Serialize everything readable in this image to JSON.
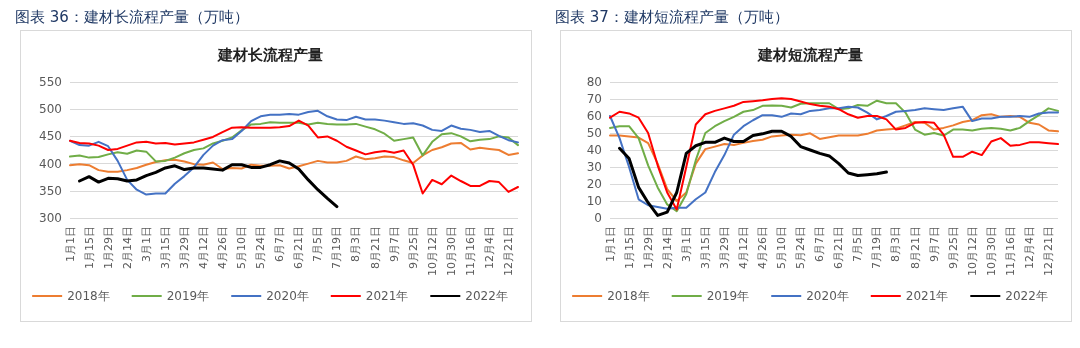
{
  "chart_data": [
    {
      "type": "line",
      "title": "图表 36：建材长流程产量（万吨）",
      "subtitle": "建材长流程产量",
      "categories": [
        "1月1日",
        null,
        "1月15日",
        null,
        "1月29日",
        null,
        "2月14日",
        null,
        "3月1日",
        null,
        "3月15日",
        null,
        "3月29日",
        null,
        "4月12日",
        null,
        "4月26日",
        null,
        "5月10日",
        null,
        "5月24日",
        null,
        "6月7日",
        null,
        "6月21日",
        null,
        "7月5日",
        null,
        "7月19日",
        null,
        "8月3日",
        null,
        "8月21日",
        null,
        "9月7日",
        null,
        "9月25日",
        null,
        "10月12日",
        null,
        "10月30日",
        null,
        "11月16日",
        null,
        "12月4日",
        null,
        "12月21日",
        null
      ],
      "series": [
        {
          "name": "2018年",
          "color": "#ed7d31",
          "values": [
            397,
            399,
            397,
            388,
            385,
            385,
            388,
            392,
            398,
            403,
            406,
            407,
            404,
            399,
            398,
            402,
            390,
            392,
            391,
            398,
            396,
            396,
            397,
            391,
            395,
            400,
            405,
            402,
            402,
            405,
            413,
            408,
            410,
            413,
            412,
            406,
            401,
            415,
            425,
            430,
            437,
            438,
            426,
            429,
            427,
            425,
            416,
            419
          ]
        },
        {
          "name": "2019年",
          "color": "#70ad47",
          "values": [
            413,
            415,
            411,
            412,
            417,
            421,
            418,
            424,
            422,
            404,
            405,
            411,
            419,
            425,
            428,
            437,
            442,
            448,
            461,
            472,
            473,
            476,
            475,
            475,
            475,
            472,
            475,
            473,
            472,
            472,
            473,
            468,
            463,
            455,
            442,
            445,
            448,
            415,
            440,
            454,
            456,
            450,
            441,
            444,
            445,
            450,
            448,
            434
          ]
        },
        {
          "name": "2020年",
          "color": "#4472c4",
          "values": [
            442,
            434,
            433,
            440,
            432,
            405,
            370,
            352,
            343,
            345,
            345,
            363,
            377,
            393,
            416,
            433,
            443,
            445,
            460,
            478,
            487,
            490,
            490,
            491,
            490,
            495,
            497,
            487,
            481,
            480,
            486,
            481,
            481,
            479,
            476,
            473,
            474,
            470,
            462,
            460,
            470,
            464,
            462,
            458,
            460,
            451,
            443,
            439
          ]
        },
        {
          "name": "2021年",
          "color": "#ff0000",
          "values": [
            442,
            438,
            437,
            433,
            425,
            427,
            433,
            439,
            440,
            437,
            438,
            435,
            437,
            439,
            444,
            449,
            458,
            466,
            467,
            466,
            466,
            466,
            467,
            469,
            479,
            470,
            448,
            450,
            442,
            431,
            424,
            417,
            421,
            423,
            420,
            424,
            398,
            345,
            370,
            362,
            378,
            368,
            359,
            359,
            368,
            366,
            348,
            357
          ]
        },
        {
          "name": "2022年",
          "color": "#000000",
          "values": [
            null,
            368,
            376,
            366,
            373,
            372,
            368,
            370,
            378,
            384,
            392,
            396,
            389,
            392,
            392,
            390,
            388,
            398,
            398,
            393,
            393,
            398,
            405,
            401,
            390,
            370,
            352,
            336,
            321,
            null,
            null,
            null,
            null,
            null,
            null,
            null,
            null,
            null,
            null,
            null,
            null,
            null,
            null,
            null,
            null,
            null,
            null,
            null
          ]
        }
      ],
      "ylim": [
        300,
        550
      ],
      "yticks": [
        300,
        350,
        400,
        450,
        500,
        550
      ],
      "grid": "y",
      "legend": "bottom",
      "marker": "none",
      "line_style": "solid"
    },
    {
      "type": "line",
      "title": "图表 37：建材短流程产量（万吨）",
      "subtitle": "建材短流程产量",
      "categories": [
        "1月1日",
        null,
        "1月15日",
        null,
        "1月29日",
        null,
        "2月14日",
        null,
        "3月1日",
        null,
        "3月15日",
        null,
        "3月29日",
        null,
        "4月12日",
        null,
        "4月26日",
        null,
        "5月10日",
        null,
        "5月24日",
        null,
        "6月7日",
        null,
        "6月21日",
        null,
        "7月5日",
        null,
        "7月19日",
        null,
        "8月3日",
        null,
        "8月21日",
        null,
        "9月7日",
        null,
        "9月25日",
        null,
        "10月12日",
        null,
        "10月30日",
        null,
        "11月16日",
        null,
        "12月4日",
        null,
        "12月21日",
        null
      ],
      "series": [
        {
          "name": "2018年",
          "color": "#ed7d31",
          "values": [
            48.5,
            48.5,
            48,
            47.3,
            44,
            32,
            17,
            10,
            15,
            32,
            40.5,
            42,
            43.5,
            43,
            44.2,
            45.3,
            46,
            48,
            48.5,
            49,
            48.7,
            49.8,
            46.5,
            47.5,
            48.5,
            48.5,
            48.5,
            49.5,
            51.5,
            52,
            52.5,
            54.5,
            56.5,
            56,
            52,
            53,
            54.5,
            56.5,
            57.5,
            60.5,
            61,
            59.5,
            60,
            59.5,
            56,
            55,
            51.5,
            51
          ]
        },
        {
          "name": "2019年",
          "color": "#70ad47",
          "values": [
            53,
            54,
            54,
            47,
            31,
            18,
            8,
            4,
            14,
            34,
            50,
            54,
            57,
            59.5,
            62.5,
            63.5,
            66,
            66.2,
            66,
            65,
            67.2,
            67.5,
            67.5,
            67.5,
            64,
            64.5,
            66.5,
            66,
            69,
            67.5,
            67.5,
            62,
            52,
            49,
            50,
            48.5,
            52,
            52,
            51.5,
            52.5,
            53,
            52.5,
            51.5,
            53,
            57,
            60.5,
            64.5,
            63
          ]
        },
        {
          "name": "2020年",
          "color": "#4472c4",
          "values": [
            60,
            47,
            30,
            11,
            7.5,
            6.5,
            5.5,
            6,
            6,
            11,
            15,
            27,
            37,
            49,
            54,
            57.5,
            60.5,
            60.5,
            59.5,
            61.5,
            61,
            63,
            63.5,
            64.5,
            64.5,
            65.5,
            65,
            62,
            58,
            60,
            62.5,
            63,
            63.5,
            64.5,
            64,
            63.5,
            64.5,
            65.5,
            57,
            58.5,
            58.5,
            59.5,
            59.5,
            60,
            59.5,
            61.5,
            62,
            62
          ]
        },
        {
          "name": "2021年",
          "color": "#ff0000",
          "values": [
            59,
            62.5,
            61.5,
            59,
            50,
            31,
            15,
            5,
            30,
            55,
            61,
            63,
            64.5,
            66,
            68.3,
            68.7,
            69.2,
            70,
            70.5,
            70,
            68.5,
            67,
            66,
            65.5,
            64,
            61,
            59,
            60,
            60,
            58,
            52,
            53,
            56,
            56.5,
            56,
            49,
            36,
            36,
            39,
            37,
            45,
            47,
            42.5,
            43,
            44.5,
            44.5,
            44,
            43.5
          ]
        },
        {
          "name": "2022年",
          "color": "#000000",
          "values": [
            null,
            41,
            35,
            18,
            9,
            1.5,
            3.5,
            15,
            38,
            42.5,
            44.5,
            44.5,
            47,
            45,
            45,
            48.5,
            49.5,
            51,
            51,
            48,
            42,
            40,
            38,
            36.5,
            32,
            26.5,
            25,
            25.5,
            26,
            27,
            null,
            null,
            null,
            null,
            null,
            null,
            null,
            null,
            null,
            null,
            null,
            null,
            null,
            null,
            null,
            null,
            null,
            null
          ]
        }
      ],
      "ylim": [
        0,
        80
      ],
      "yticks": [
        0,
        10,
        20,
        30,
        40,
        50,
        60,
        70,
        80
      ],
      "grid": "y",
      "legend": "bottom",
      "marker": "none",
      "line_style": "solid"
    }
  ]
}
